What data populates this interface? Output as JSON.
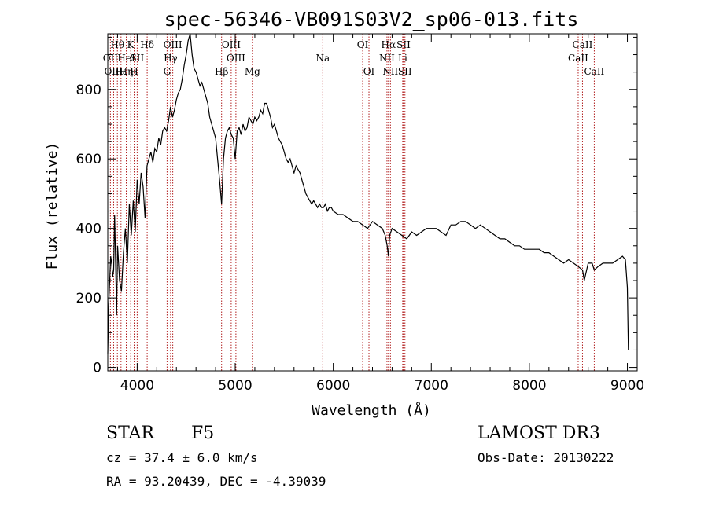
{
  "chart_data": {
    "type": "line",
    "title": "spec-56346-VB091S03V2_sp06-013.fits",
    "xlabel": "Wavelength (Å)",
    "ylabel": "Flux (relative)",
    "xlim": [
      3700,
      9100
    ],
    "ylim": [
      -10,
      960
    ],
    "xticks": [
      4000,
      5000,
      6000,
      7000,
      8000,
      9000
    ],
    "yticks": [
      0,
      200,
      400,
      600,
      800
    ],
    "grid": false,
    "series": [
      {
        "x": [
          3700,
          3710,
          3720,
          3730,
          3740,
          3750,
          3760,
          3770,
          3780,
          3790,
          3800,
          3820,
          3840,
          3860,
          3880,
          3900,
          3920,
          3940,
          3960,
          3980,
          4000,
          4020,
          4040,
          4060,
          4080,
          4100,
          4120,
          4140,
          4160,
          4180,
          4200,
          4220,
          4240,
          4260,
          4280,
          4300,
          4320,
          4340,
          4360,
          4380,
          4400,
          4420,
          4440,
          4460,
          4480,
          4500,
          4520,
          4540,
          4560,
          4580,
          4600,
          4620,
          4640,
          4660,
          4680,
          4700,
          4720,
          4740,
          4760,
          4780,
          4800,
          4820,
          4840,
          4861,
          4880,
          4900,
          4920,
          4940,
          4960,
          4980,
          5000,
          5020,
          5040,
          5060,
          5080,
          5100,
          5120,
          5140,
          5160,
          5180,
          5200,
          5220,
          5240,
          5260,
          5280,
          5300,
          5320,
          5340,
          5360,
          5380,
          5400,
          5420,
          5440,
          5460,
          5480,
          5500,
          5520,
          5540,
          5560,
          5580,
          5600,
          5620,
          5640,
          5660,
          5680,
          5700,
          5720,
          5740,
          5760,
          5780,
          5800,
          5820,
          5840,
          5860,
          5880,
          5900,
          5920,
          5940,
          5960,
          5980,
          6000,
          6050,
          6100,
          6150,
          6200,
          6250,
          6300,
          6350,
          6400,
          6450,
          6500,
          6530,
          6550,
          6563,
          6575,
          6600,
          6650,
          6700,
          6750,
          6800,
          6850,
          6900,
          6950,
          7000,
          7050,
          7100,
          7150,
          7200,
          7250,
          7300,
          7350,
          7400,
          7450,
          7500,
          7550,
          7600,
          7650,
          7700,
          7750,
          7800,
          7850,
          7900,
          7950,
          8000,
          8050,
          8100,
          8150,
          8200,
          8250,
          8300,
          8350,
          8400,
          8450,
          8500,
          8542,
          8560,
          8600,
          8640,
          8662,
          8700,
          8750,
          8800,
          8850,
          8900,
          8950,
          8980,
          9000,
          9010
        ],
        "y": [
          40,
          180,
          250,
          320,
          300,
          260,
          280,
          440,
          300,
          150,
          350,
          250,
          220,
          330,
          400,
          300,
          470,
          380,
          480,
          390,
          540,
          470,
          560,
          520,
          430,
          580,
          600,
          620,
          590,
          630,
          620,
          660,
          640,
          680,
          690,
          680,
          710,
          750,
          720,
          740,
          770,
          790,
          800,
          830,
          870,
          900,
          940,
          960,
          900,
          860,
          850,
          830,
          810,
          820,
          800,
          780,
          760,
          720,
          700,
          680,
          660,
          600,
          540,
          470,
          600,
          660,
          680,
          690,
          670,
          660,
          600,
          680,
          690,
          670,
          700,
          680,
          690,
          720,
          710,
          700,
          720,
          710,
          720,
          740,
          730,
          760,
          760,
          740,
          720,
          690,
          700,
          680,
          660,
          650,
          640,
          620,
          600,
          590,
          600,
          580,
          560,
          580,
          570,
          560,
          540,
          520,
          500,
          490,
          480,
          470,
          480,
          470,
          460,
          470,
          460,
          460,
          470,
          450,
          460,
          460,
          450,
          440,
          440,
          430,
          420,
          420,
          410,
          400,
          420,
          410,
          400,
          380,
          350,
          320,
          380,
          400,
          390,
          380,
          370,
          390,
          380,
          390,
          400,
          400,
          400,
          390,
          380,
          410,
          410,
          420,
          420,
          410,
          400,
          410,
          400,
          390,
          380,
          370,
          370,
          360,
          350,
          350,
          340,
          340,
          340,
          340,
          330,
          330,
          320,
          310,
          300,
          310,
          300,
          290,
          280,
          250,
          300,
          300,
          280,
          290,
          300,
          300,
          300,
          310,
          320,
          310,
          230,
          50
        ]
      }
    ],
    "lines": [
      {
        "label": "Hθ",
        "x": 3798,
        "row": 0
      },
      {
        "label": "OII",
        "x": 3727,
        "row": 1
      },
      {
        "label": "OIII",
        "x": 3760,
        "row": 2
      },
      {
        "label": "Hε",
        "x": 3835,
        "row": 2
      },
      {
        "label": "Hη",
        "x": 3889,
        "row": 2
      },
      {
        "label": "K",
        "x": 3934,
        "row": 0
      },
      {
        "label": "HeI",
        "x": 3889,
        "row": 1
      },
      {
        "label": "SII",
        "x": 4000,
        "row": 1
      },
      {
        "label": "H",
        "x": 3969,
        "row": 2
      },
      {
        "label": "Hδ",
        "x": 4102,
        "row": 0
      },
      {
        "label": "OIII",
        "x": 4363,
        "row": 0
      },
      {
        "label": "Hγ",
        "x": 4341,
        "row": 1
      },
      {
        "label": "G",
        "x": 4305,
        "row": 2
      },
      {
        "label": "Hβ",
        "x": 4861,
        "row": 2
      },
      {
        "label": "OIII",
        "x": 4959,
        "row": 0
      },
      {
        "label": "OIII",
        "x": 5007,
        "row": 1
      },
      {
        "label": "Mg",
        "x": 5175,
        "row": 2
      },
      {
        "label": "Na",
        "x": 5893,
        "row": 1
      },
      {
        "label": "OI",
        "x": 6300,
        "row": 0
      },
      {
        "label": "OI",
        "x": 6364,
        "row": 2
      },
      {
        "label": "Hα",
        "x": 6563,
        "row": 0
      },
      {
        "label": "NII",
        "x": 6548,
        "row": 1
      },
      {
        "label": "NII",
        "x": 6583,
        "row": 2
      },
      {
        "label": "SII",
        "x": 6717,
        "row": 0
      },
      {
        "label": "Li",
        "x": 6708,
        "row": 1
      },
      {
        "label": "SII",
        "x": 6731,
        "row": 2
      },
      {
        "label": "CaII",
        "x": 8542,
        "row": 0
      },
      {
        "label": "CaII",
        "x": 8498,
        "row": 1
      },
      {
        "label": "CaII",
        "x": 8662,
        "row": 2
      }
    ]
  },
  "info": {
    "class": "STAR",
    "subclass": "F5",
    "survey": "LAMOST DR3",
    "cz": "cz = 37.4 ± 6.0 km/s",
    "obsdate": "Obs-Date: 20130222",
    "radec": "RA =  93.20439, DEC =  -4.39039"
  }
}
